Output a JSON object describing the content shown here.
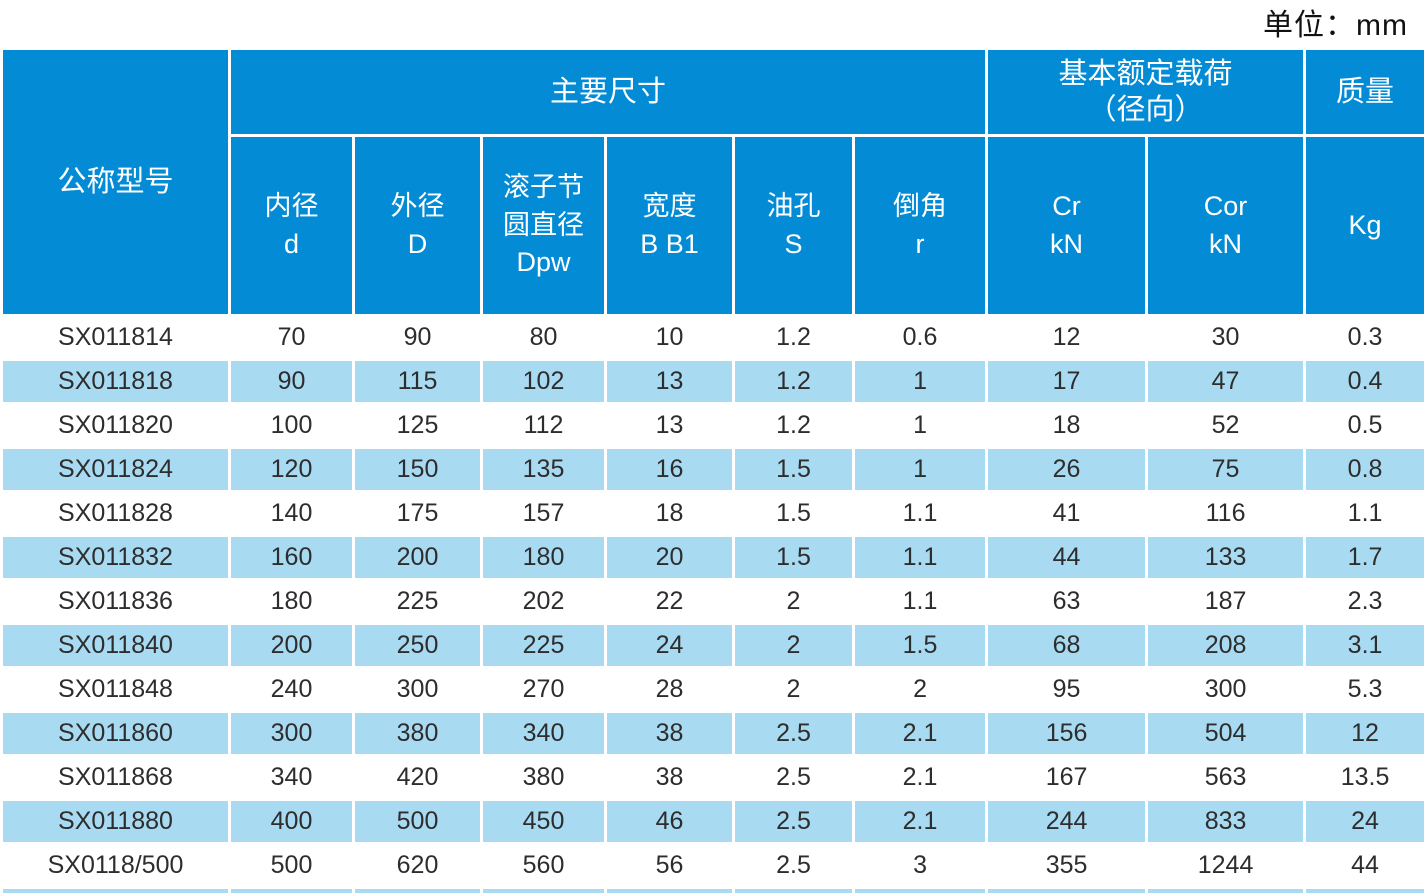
{
  "unit_label": "单位：mm",
  "colors": {
    "header_blue": "#038cd5",
    "row_light_blue": "#a8daf2",
    "row_white": "#ffffff",
    "header_text": "#ffffff",
    "data_text": "#2d2d2d"
  },
  "header": {
    "model": "公称型号",
    "main_dimensions": "主要尺寸",
    "basic_load_line1": "基本额定载荷",
    "basic_load_line2": "（径向）",
    "mass": "质量"
  },
  "subheaders": {
    "bore": {
      "l1": "内径",
      "l2": "d"
    },
    "outer": {
      "l1": "外径",
      "l2": "D"
    },
    "pitch": {
      "l1": "滚子节",
      "l2": "圆直径",
      "l3": "Dpw"
    },
    "width": {
      "l1": "宽度",
      "l2": "B B1"
    },
    "oilhole": {
      "l1": "油孔",
      "l2": "S"
    },
    "chamfer": {
      "l1": "倒角",
      "l2": "r"
    },
    "cr": {
      "l1": "Cr",
      "l2": "kN"
    },
    "cor": {
      "l1": "Cor",
      "l2": "kN"
    },
    "kg": {
      "l1": "Kg"
    }
  },
  "table": {
    "rows": [
      {
        "model": "SX011814",
        "values": [
          "70",
          "90",
          "80",
          "10",
          "1.2",
          "0.6",
          "12",
          "30",
          "0.3"
        ]
      },
      {
        "model": "SX011818",
        "values": [
          "90",
          "115",
          "102",
          "13",
          "1.2",
          "1",
          "17",
          "47",
          "0.4"
        ]
      },
      {
        "model": "SX011820",
        "values": [
          "100",
          "125",
          "112",
          "13",
          "1.2",
          "1",
          "18",
          "52",
          "0.5"
        ]
      },
      {
        "model": "SX011824",
        "values": [
          "120",
          "150",
          "135",
          "16",
          "1.5",
          "1",
          "26",
          "75",
          "0.8"
        ]
      },
      {
        "model": "SX011828",
        "values": [
          "140",
          "175",
          "157",
          "18",
          "1.5",
          "1.1",
          "41",
          "116",
          "1.1"
        ]
      },
      {
        "model": "SX011832",
        "values": [
          "160",
          "200",
          "180",
          "20",
          "1.5",
          "1.1",
          "44",
          "133",
          "1.7"
        ]
      },
      {
        "model": "SX011836",
        "values": [
          "180",
          "225",
          "202",
          "22",
          "2",
          "1.1",
          "63",
          "187",
          "2.3"
        ]
      },
      {
        "model": "SX011840",
        "values": [
          "200",
          "250",
          "225",
          "24",
          "2",
          "1.5",
          "68",
          "208",
          "3.1"
        ]
      },
      {
        "model": "SX011848",
        "values": [
          "240",
          "300",
          "270",
          "28",
          "2",
          "2",
          "95",
          "300",
          "5.3"
        ]
      },
      {
        "model": "SX011860",
        "values": [
          "300",
          "380",
          "340",
          "38",
          "2.5",
          "2.1",
          "156",
          "504",
          "12"
        ]
      },
      {
        "model": "SX011868",
        "values": [
          "340",
          "420",
          "380",
          "38",
          "2.5",
          "2.1",
          "167",
          "563",
          "13.5"
        ]
      },
      {
        "model": "SX011880",
        "values": [
          "400",
          "500",
          "450",
          "46",
          "2.5",
          "2.1",
          "244",
          "833",
          "24"
        ]
      },
      {
        "model": "SX0118/500",
        "values": [
          "500",
          "620",
          "560",
          "56",
          "2.5",
          "3",
          "355",
          "1244",
          "44"
        ]
      },
      {
        "model": "",
        "values": [
          "",
          "",
          "",
          "",
          "",
          "",
          "",
          "",
          ""
        ]
      }
    ]
  }
}
